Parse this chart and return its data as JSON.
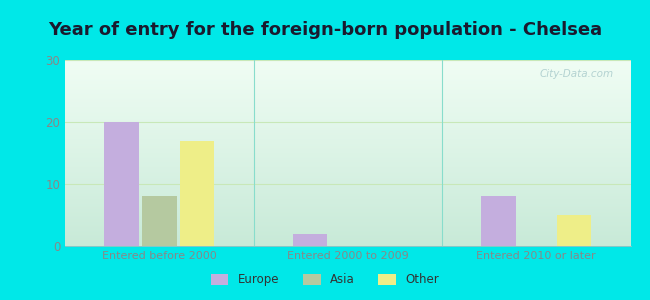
{
  "title": "Year of entry for the foreign-born population - Chelsea",
  "groups": [
    "Entered before 2000",
    "Entered 2000 to 2009",
    "Entered 2010 or later"
  ],
  "series": {
    "Europe": [
      20,
      2,
      8
    ],
    "Asia": [
      8,
      0,
      0
    ],
    "Other": [
      17,
      0,
      5
    ]
  },
  "colors": {
    "Europe": "#c4aede",
    "Asia": "#b5c9a0",
    "Other": "#eeee88"
  },
  "ylim": [
    0,
    30
  ],
  "yticks": [
    0,
    10,
    20,
    30
  ],
  "background_outer": "#00e8e8",
  "background_plot": "#d8f0e4",
  "grid_color": "#c8e8b8",
  "title_fontsize": 13,
  "bar_width": 0.2,
  "watermark": "City-Data.com",
  "tick_color": "#888888",
  "title_color": "#1a1a2e"
}
